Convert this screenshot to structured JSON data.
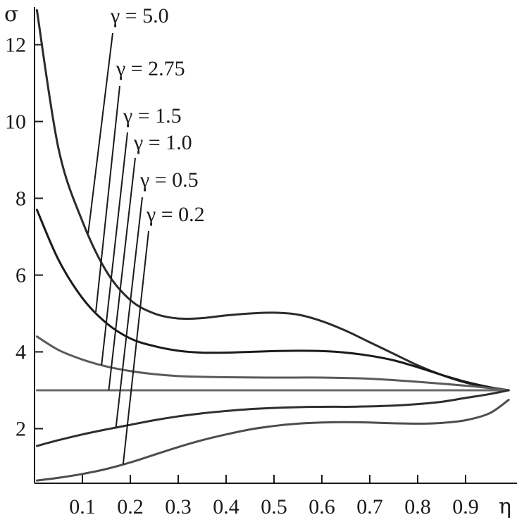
{
  "chart_data": {
    "type": "line",
    "title": "",
    "xlabel": "η",
    "ylabel": "σ",
    "xlim": [
      0,
      1.0
    ],
    "ylim": [
      0.6,
      13.0
    ],
    "x_ticks": [
      0.1,
      0.2,
      0.3,
      0.4,
      0.5,
      0.6,
      0.7,
      0.8,
      0.9
    ],
    "x_tick_labels": [
      "0.1",
      "0.2",
      "0.3",
      "0.4",
      "0.5",
      "0.6",
      "0.7",
      "0.8",
      "0.9"
    ],
    "y_ticks": [
      2,
      4,
      6,
      8,
      10,
      12
    ],
    "y_tick_labels": [
      "2",
      "4",
      "6",
      "8",
      "10",
      "12"
    ],
    "grid": false,
    "legend": "none",
    "series": [
      {
        "name": "γ = 5.0",
        "color": "#2b2b2b",
        "x": [
          0.005,
          0.05,
          0.1,
          0.15,
          0.2,
          0.25,
          0.3,
          0.35,
          0.4,
          0.45,
          0.5,
          0.55,
          0.6,
          0.65,
          0.7,
          0.75,
          0.8,
          0.85,
          0.9,
          0.95,
          0.99
        ],
        "y": [
          12.9,
          9.3,
          7.4,
          6.1,
          5.35,
          5.0,
          4.87,
          4.88,
          4.95,
          5.0,
          5.02,
          4.97,
          4.8,
          4.55,
          4.25,
          3.95,
          3.65,
          3.4,
          3.2,
          3.07,
          3.0
        ]
      },
      {
        "name": "γ = 2.75",
        "color": "#1a1a1a",
        "x": [
          0.005,
          0.05,
          0.1,
          0.15,
          0.2,
          0.25,
          0.3,
          0.35,
          0.4,
          0.45,
          0.5,
          0.55,
          0.6,
          0.65,
          0.7,
          0.75,
          0.8,
          0.85,
          0.9,
          0.95,
          0.99
        ],
        "y": [
          7.7,
          6.4,
          5.4,
          4.75,
          4.35,
          4.15,
          4.03,
          3.98,
          3.98,
          4.0,
          4.02,
          4.03,
          4.02,
          3.98,
          3.9,
          3.78,
          3.6,
          3.4,
          3.22,
          3.08,
          3.0
        ]
      },
      {
        "name": "γ = 1.5",
        "color": "#5a5a5a",
        "x": [
          0.005,
          0.05,
          0.1,
          0.15,
          0.2,
          0.25,
          0.3,
          0.35,
          0.4,
          0.5,
          0.6,
          0.7,
          0.8,
          0.9,
          0.95,
          0.99
        ],
        "y": [
          4.4,
          4.05,
          3.8,
          3.62,
          3.5,
          3.42,
          3.37,
          3.35,
          3.34,
          3.33,
          3.33,
          3.3,
          3.22,
          3.12,
          3.06,
          3.0
        ]
      },
      {
        "name": "γ = 1.0",
        "color": "#6a6a6a",
        "x": [
          0.005,
          0.2,
          0.4,
          0.6,
          0.8,
          0.99
        ],
        "y": [
          3.0,
          3.0,
          3.0,
          3.0,
          3.0,
          3.0
        ]
      },
      {
        "name": "γ = 0.5",
        "color": "#2e2e2e",
        "x": [
          0.005,
          0.05,
          0.1,
          0.15,
          0.2,
          0.25,
          0.3,
          0.35,
          0.4,
          0.45,
          0.5,
          0.55,
          0.6,
          0.65,
          0.7,
          0.75,
          0.8,
          0.85,
          0.9,
          0.95,
          0.99
        ],
        "y": [
          1.55,
          1.7,
          1.85,
          1.98,
          2.1,
          2.22,
          2.32,
          2.4,
          2.46,
          2.51,
          2.54,
          2.56,
          2.57,
          2.57,
          2.58,
          2.6,
          2.64,
          2.7,
          2.8,
          2.9,
          3.0
        ]
      },
      {
        "name": "γ = 0.2",
        "color": "#4d4d4d",
        "x": [
          0.005,
          0.05,
          0.1,
          0.15,
          0.2,
          0.25,
          0.3,
          0.35,
          0.4,
          0.45,
          0.5,
          0.55,
          0.6,
          0.65,
          0.7,
          0.75,
          0.8,
          0.85,
          0.9,
          0.95,
          0.99
        ],
        "y": [
          0.65,
          0.72,
          0.82,
          0.95,
          1.12,
          1.32,
          1.52,
          1.7,
          1.85,
          1.98,
          2.07,
          2.13,
          2.16,
          2.17,
          2.16,
          2.14,
          2.13,
          2.15,
          2.22,
          2.4,
          2.75
        ]
      }
    ],
    "annotations": [
      {
        "text": "γ = 5.0",
        "target_series": 0,
        "target_x": 0.112
      },
      {
        "text": "γ = 2.75",
        "target_series": 1,
        "target_x": 0.128
      },
      {
        "text": "γ = 1.5",
        "target_series": 2,
        "target_x": 0.14
      },
      {
        "text": "γ = 1.0",
        "target_series": 3,
        "target_x": 0.155
      },
      {
        "text": "γ = 0.5",
        "target_series": 4,
        "target_x": 0.17
      },
      {
        "text": "γ = 0.2",
        "target_series": 5,
        "target_x": 0.185
      }
    ]
  }
}
